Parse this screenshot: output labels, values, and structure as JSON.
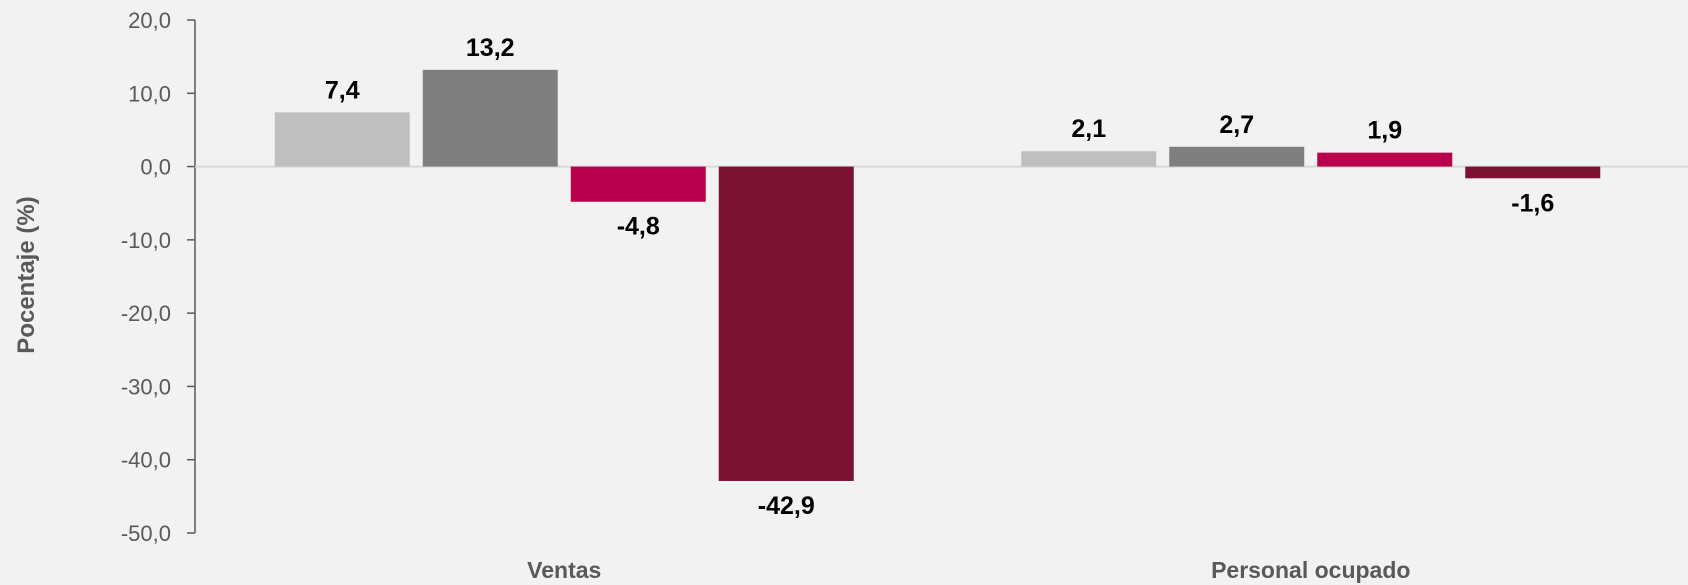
{
  "chart_data": {
    "type": "bar",
    "categories": [
      "Ventas",
      "Personal ocupado"
    ],
    "series": [
      {
        "values": [
          7.4,
          2.1
        ],
        "color": "#bfbfbf"
      },
      {
        "values": [
          13.2,
          2.7
        ],
        "color": "#7f7f7f"
      },
      {
        "values": [
          -4.8,
          1.9
        ],
        "color": "#b8004d"
      },
      {
        "values": [
          -42.9,
          -1.6
        ],
        "color": "#7b1234"
      }
    ],
    "data_labels": [
      [
        "7,4",
        "2,1"
      ],
      [
        "13,2",
        "2,7"
      ],
      [
        "-4,8",
        "1,9"
      ],
      [
        "-42,9",
        "-1,6"
      ]
    ],
    "title": "",
    "xlabel": "",
    "ylabel": "Pocentaje (%)",
    "ylim": [
      -50,
      20
    ],
    "yticks": [
      20,
      10,
      0,
      -10,
      -20,
      -30,
      -40,
      -50
    ],
    "ytick_labels": [
      "20,0",
      "10,0",
      "0,0",
      "-10,0",
      "-20,0",
      "-30,0",
      "-40,0",
      "-50,0"
    ],
    "grid": false,
    "legend": "none"
  }
}
